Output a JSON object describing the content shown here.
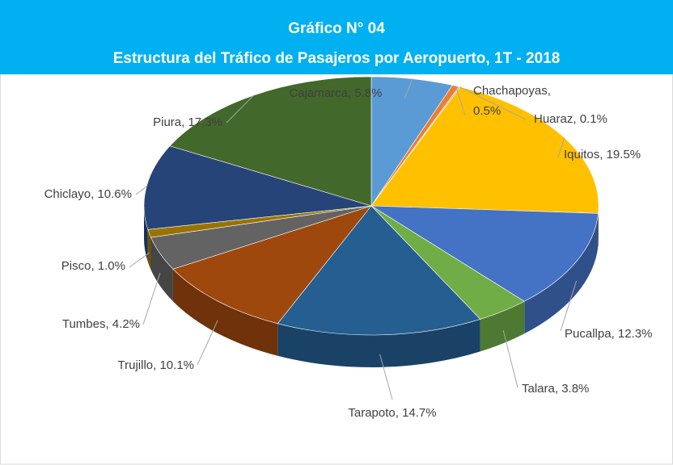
{
  "chart_data": {
    "type": "pie3d",
    "title": "Gráfico N°  04",
    "subtitle": "Estructura del Tráfico de Pasajeros por Aeropuerto, 1T - 2018",
    "categories": [
      "Cajamarca",
      "Chachapoyas",
      "Huaraz",
      "Iquitos",
      "Pucallpa",
      "Talara",
      "Tarapoto",
      "Trujillo",
      "Tumbes",
      "Pisco",
      "Chiclayo",
      "Piura"
    ],
    "values": [
      5.8,
      0.5,
      0.1,
      19.5,
      12.3,
      3.8,
      14.7,
      10.1,
      4.2,
      1.0,
      10.6,
      17.3
    ],
    "value_labels": [
      "Cajamarca, 5.8%",
      "Chachapoyas, 0.5%",
      "Huaraz, 0.1%",
      "Iquitos, 19.5%",
      "Pucallpa, 12.3%",
      "Talara, 3.8%",
      "Tarapoto, 14.7%",
      "Trujillo, 10.1%",
      "Tumbes, 4.2%",
      "Pisco, 1.0%",
      "Chiclayo, 10.6%",
      "Piura, 17.3%"
    ],
    "colors": [
      "#5b9bd5",
      "#ed7d31",
      "#a5a5a5",
      "#ffc000",
      "#4472c4",
      "#70ad47",
      "#255e91",
      "#9e480e",
      "#636363",
      "#997300",
      "#264478",
      "#43682b"
    ]
  }
}
